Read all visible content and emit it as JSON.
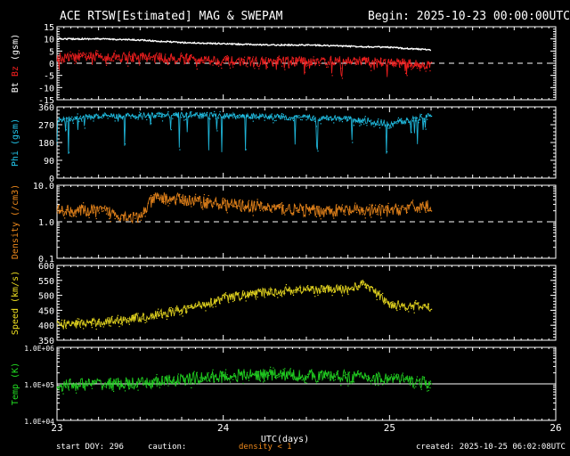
{
  "header": {
    "title": "ACE RTSW[Estimated] MAG & SWEPAM",
    "begin": "Begin: 2025-10-23 00:00:00UTC"
  },
  "footer": {
    "start_doy": "start DOY: 296",
    "caution": "caution:",
    "density_note": "density < 1",
    "created": "created: 2025-10-25 06:02:08UTC"
  },
  "colors": {
    "bt": "#ffffff",
    "bz": "#ff2020",
    "phi": "#22c8ee",
    "density": "#f08a1c",
    "speed": "#f0e020",
    "temp": "#22dd22",
    "axes": "#ffffff"
  },
  "chart_data": {
    "type": "scatter",
    "xlabel": "UTC(days)",
    "xlim": [
      23,
      26
    ],
    "x_ticks": [
      "23",
      "24",
      "25",
      "26"
    ],
    "data_end_day": 25.25,
    "panels": [
      {
        "id": "mag",
        "ylabel_parts": [
          {
            "text": "Bt",
            "color": "#ffffff"
          },
          {
            "text": " ",
            "color": "#ffffff"
          },
          {
            "text": "Bz",
            "color": "#ff2020"
          },
          {
            "text": " (gsm)",
            "color": "#ffffff"
          }
        ],
        "ylim": [
          -15,
          15
        ],
        "ticks": [
          "-15",
          "-10",
          "-5",
          "0",
          "5",
          "10",
          "15"
        ],
        "tick_values": [
          -15,
          -10,
          -5,
          0,
          5,
          10,
          15
        ],
        "reference_line": 0,
        "series": [
          {
            "name": "Bt",
            "color": "#ffffff",
            "style": "line",
            "x": [
              23.0,
              23.25,
              23.5,
              23.75,
              24.0,
              24.25,
              24.5,
              24.75,
              25.0,
              25.25
            ],
            "y": [
              10,
              10,
              9.5,
              8.5,
              8,
              7.5,
              7.5,
              7,
              6.5,
              5.5
            ]
          },
          {
            "name": "Bz",
            "color": "#ff2020",
            "style": "noisy",
            "x": [
              23.0,
              23.25,
              23.5,
              23.75,
              24.0,
              24.25,
              24.5,
              24.75,
              25.0,
              25.25
            ],
            "y": [
              2,
              3,
              2.5,
              2,
              1,
              0.5,
              1,
              1,
              0.5,
              -1
            ]
          }
        ]
      },
      {
        "id": "phi",
        "ylabel_parts": [
          {
            "text": "Phi (gsm)",
            "color": "#22c8ee"
          }
        ],
        "ylim": [
          0,
          360
        ],
        "ticks": [
          "0",
          "90",
          "180",
          "270",
          "360"
        ],
        "tick_values": [
          0,
          90,
          180,
          270,
          360
        ],
        "series": [
          {
            "name": "Phi",
            "color": "#22c8ee",
            "style": "noisy",
            "x": [
              23.0,
              23.25,
              23.5,
              23.75,
              24.0,
              24.25,
              24.5,
              24.75,
              25.0,
              25.25
            ],
            "y": [
              290,
              315,
              315,
              320,
              315,
              310,
              305,
              300,
              270,
              320
            ]
          }
        ]
      },
      {
        "id": "density",
        "ylabel_parts": [
          {
            "text": "Density (/cm3)",
            "color": "#f08a1c"
          }
        ],
        "scale": "log",
        "ylim": [
          0.1,
          10
        ],
        "ticks": [
          "0.1",
          "1.0",
          "10.0"
        ],
        "tick_values": [
          0.1,
          1,
          10
        ],
        "reference_line": 1,
        "series": [
          {
            "name": "Density",
            "color": "#f08a1c",
            "style": "noisy",
            "x": [
              23.0,
              23.25,
              23.5,
              23.6,
              23.75,
              24.0,
              24.25,
              24.5,
              24.75,
              25.0,
              25.25
            ],
            "y": [
              2.0,
              2.0,
              1.2,
              4.5,
              4.0,
              3.0,
              2.5,
              2.0,
              2.0,
              2.0,
              2.8
            ]
          }
        ]
      },
      {
        "id": "speed",
        "ylabel_parts": [
          {
            "text": "Speed (km/s)",
            "color": "#f0e020"
          }
        ],
        "ylim": [
          350,
          600
        ],
        "ticks": [
          "350",
          "400",
          "450",
          "500",
          "550",
          "600"
        ],
        "tick_values": [
          350,
          400,
          450,
          500,
          550,
          600
        ],
        "series": [
          {
            "name": "Speed",
            "color": "#f0e020",
            "style": "noisy",
            "x": [
              23.0,
              23.25,
              23.5,
              23.75,
              24.0,
              24.25,
              24.5,
              24.75,
              24.85,
              25.0,
              25.25
            ],
            "y": [
              400,
              410,
              425,
              450,
              490,
              510,
              520,
              520,
              540,
              470,
              460
            ]
          }
        ]
      },
      {
        "id": "temp",
        "ylabel_parts": [
          {
            "text": "Temp (K)",
            "color": "#22dd22"
          }
        ],
        "scale": "log",
        "ylim": [
          10000,
          1000000
        ],
        "ticks": [
          "1.0E+04",
          "1.0E+05",
          "1.0E+06"
        ],
        "tick_values": [
          10000,
          100000,
          1000000
        ],
        "reference_line": 100000,
        "series": [
          {
            "name": "Temp",
            "color": "#22dd22",
            "style": "noisy",
            "x": [
              23.0,
              23.25,
              23.5,
              23.75,
              24.0,
              24.25,
              24.5,
              24.75,
              25.0,
              25.25
            ],
            "y": [
              90000,
              100000,
              100000,
              130000,
              160000,
              180000,
              170000,
              160000,
              140000,
              100000
            ]
          }
        ]
      }
    ]
  }
}
